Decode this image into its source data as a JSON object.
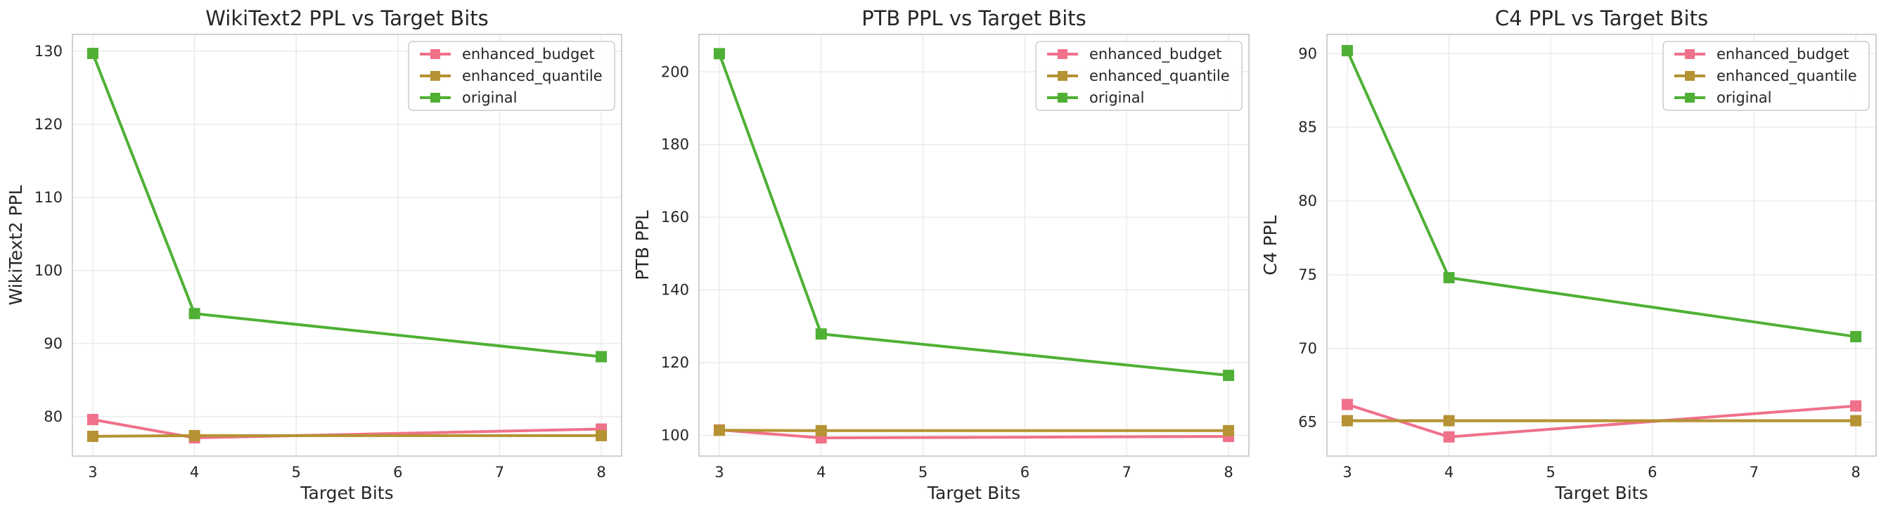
{
  "colors": {
    "enhanced_budget": "#f0718a",
    "enhanced_quantile": "#b59233",
    "original": "#4fb035",
    "grid": "#ebebeb",
    "axes_edge": "#cccccc",
    "text": "#262626"
  },
  "chart_data": [
    {
      "type": "line",
      "title": "WikiText2 PPL vs Target Bits",
      "xlabel": "Target Bits",
      "ylabel": "WikiText2 PPL",
      "x": [
        3,
        4,
        8
      ],
      "xticks": [
        "3",
        "4",
        "5",
        "6",
        "7",
        "8"
      ],
      "yticks": [
        "80",
        "90",
        "100",
        "110",
        "120",
        "130"
      ],
      "xlim": [
        2.8,
        8.2
      ],
      "ylim": [
        74.6,
        132.3
      ],
      "grid": true,
      "legend_position": "top-right",
      "series": [
        {
          "name": "enhanced_budget",
          "values": [
            79.6,
            77.1,
            78.3
          ]
        },
        {
          "name": "enhanced_quantile",
          "values": [
            77.3,
            77.4,
            77.4
          ]
        },
        {
          "name": "original",
          "values": [
            129.7,
            94.1,
            88.2
          ]
        }
      ]
    },
    {
      "type": "line",
      "title": "PTB PPL vs Target Bits",
      "xlabel": "Target Bits",
      "ylabel": "PTB PPL",
      "x": [
        3,
        4,
        8
      ],
      "xticks": [
        "3",
        "4",
        "5",
        "6",
        "7",
        "8"
      ],
      "yticks": [
        "100",
        "120",
        "140",
        "160",
        "180",
        "200"
      ],
      "xlim": [
        2.8,
        8.2
      ],
      "ylim": [
        94.3,
        210.3
      ],
      "grid": true,
      "legend_position": "top-right",
      "series": [
        {
          "name": "enhanced_budget",
          "values": [
            101.5,
            99.3,
            99.7
          ]
        },
        {
          "name": "enhanced_quantile",
          "values": [
            101.4,
            101.3,
            101.3
          ]
        },
        {
          "name": "original",
          "values": [
            205.0,
            127.9,
            116.5
          ]
        }
      ]
    },
    {
      "type": "line",
      "title": "C4 PPL vs Target Bits",
      "xlabel": "Target Bits",
      "ylabel": "C4 PPL",
      "x": [
        3,
        4,
        8
      ],
      "xticks": [
        "3",
        "4",
        "5",
        "6",
        "7",
        "8"
      ],
      "yticks": [
        "65",
        "70",
        "75",
        "80",
        "85",
        "90"
      ],
      "xlim": [
        2.8,
        8.2
      ],
      "ylim": [
        62.7,
        91.3
      ],
      "grid": true,
      "legend_position": "top-right",
      "series": [
        {
          "name": "enhanced_budget",
          "values": [
            66.2,
            64.0,
            66.1
          ]
        },
        {
          "name": "enhanced_quantile",
          "values": [
            65.1,
            65.1,
            65.1
          ]
        },
        {
          "name": "original",
          "values": [
            90.2,
            74.8,
            70.8
          ]
        }
      ]
    }
  ]
}
